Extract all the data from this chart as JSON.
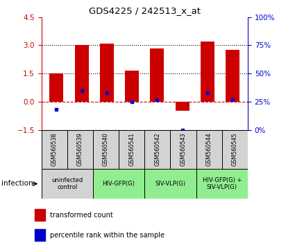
{
  "title": "GDS4225 / 242513_x_at",
  "samples": [
    "GSM560538",
    "GSM560539",
    "GSM560540",
    "GSM560541",
    "GSM560542",
    "GSM560543",
    "GSM560544",
    "GSM560545"
  ],
  "red_bars": [
    1.5,
    3.0,
    3.1,
    1.65,
    2.85,
    -0.5,
    3.2,
    2.75
  ],
  "blue_dot_pct": [
    18,
    35,
    33,
    25,
    27,
    0,
    33,
    27
  ],
  "ylim_left": [
    -1.5,
    4.5
  ],
  "ylim_right": [
    0,
    100
  ],
  "yticks_left": [
    -1.5,
    0.0,
    1.5,
    3.0,
    4.5
  ],
  "yticks_right": [
    0,
    25,
    50,
    75,
    100
  ],
  "hlines": [
    1.5,
    3.0
  ],
  "groups": [
    {
      "label": "uninfected\ncontrol",
      "start": 0,
      "end": 2,
      "color": "#d3d3d3"
    },
    {
      "label": "HIV-GFP(G)",
      "start": 2,
      "end": 4,
      "color": "#90ee90"
    },
    {
      "label": "SIV-VLP(G)",
      "start": 4,
      "end": 6,
      "color": "#90ee90"
    },
    {
      "label": "HIV-GFP(G) +\nSIV-VLP(G)",
      "start": 6,
      "end": 8,
      "color": "#90ee90"
    }
  ],
  "red_color": "#cc0000",
  "blue_color": "#0000cc",
  "dashed_line_color": "#cc0000",
  "dotted_line_color": "#000000",
  "bar_width": 0.55,
  "infection_label": "infection",
  "bg_color": "#ffffff"
}
